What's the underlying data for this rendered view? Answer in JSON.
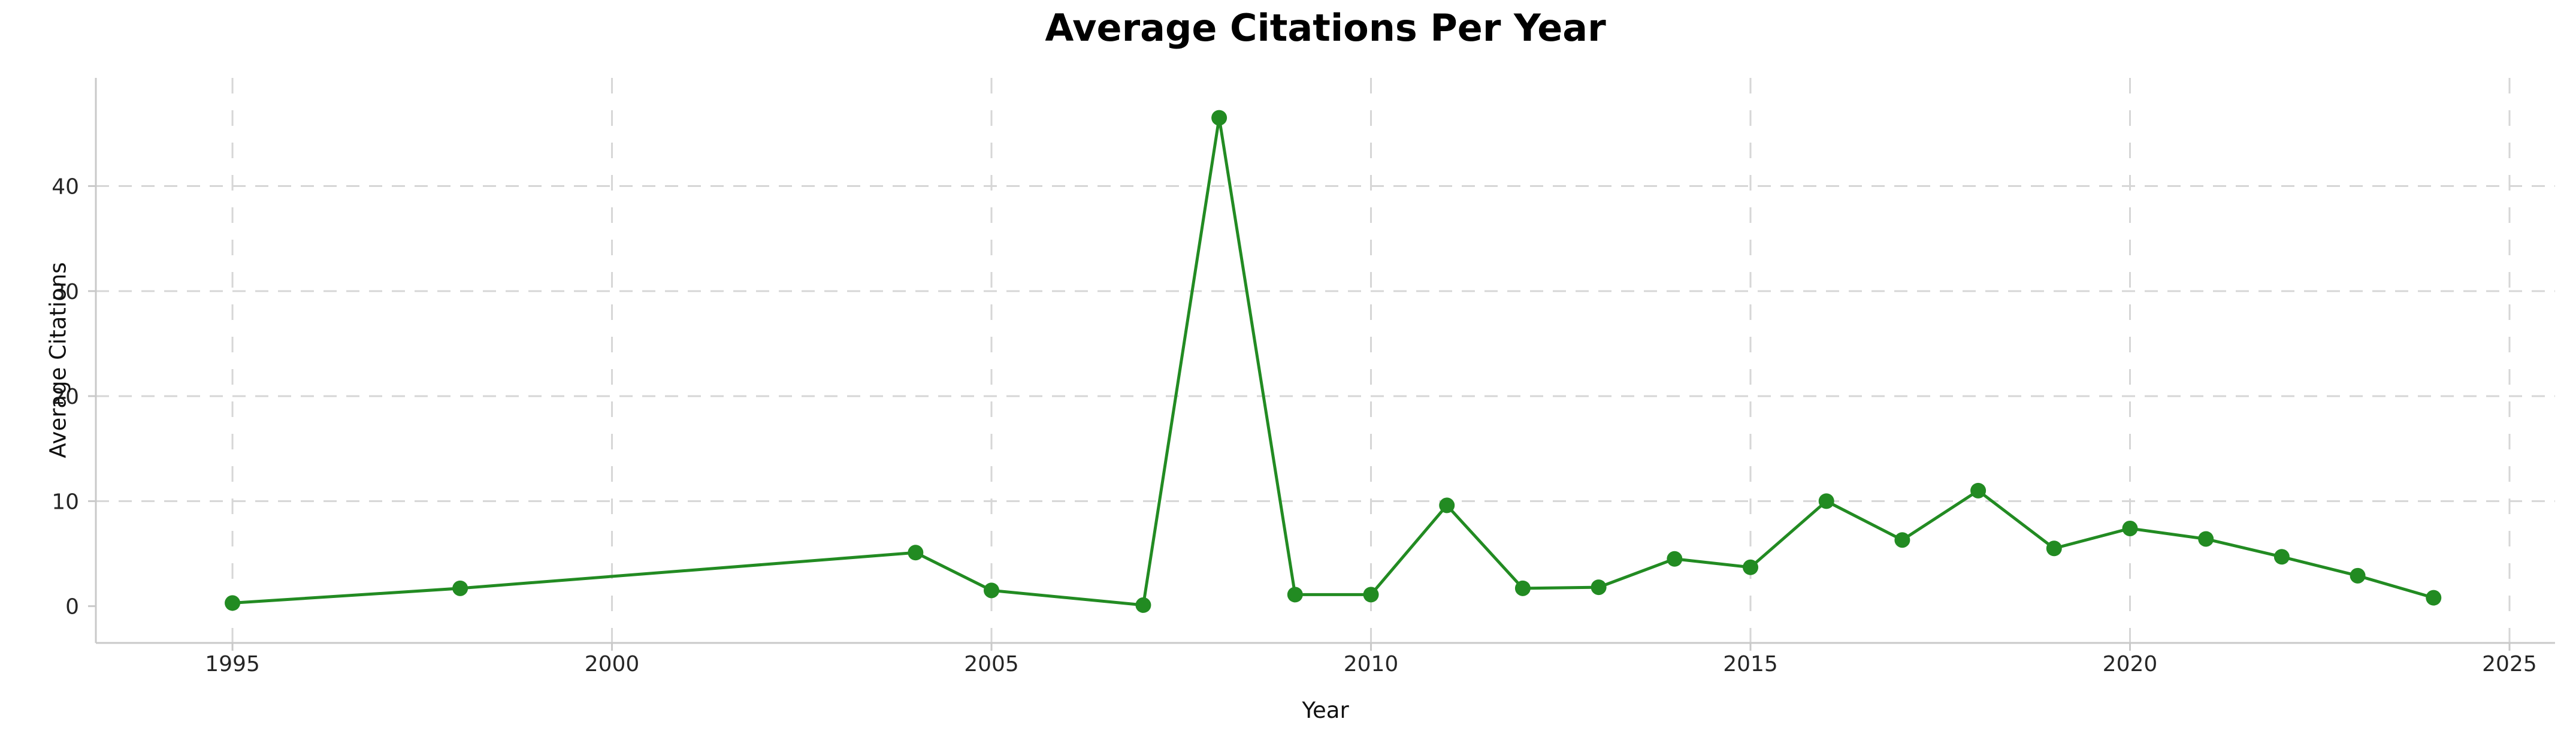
{
  "page": {
    "background": "#ffffff"
  },
  "chart_data": {
    "type": "line",
    "title": "Average Citations Per Year",
    "xlabel": "Year",
    "ylabel": "Average Citations",
    "series": [
      {
        "name": "Average Citations",
        "color": "#228B22",
        "marker": "circle",
        "x": [
          1995,
          1998,
          2004,
          2005,
          2007,
          2008,
          2009,
          2010,
          2011,
          2012,
          2013,
          2014,
          2015,
          2016,
          2017,
          2018,
          2019,
          2020,
          2021,
          2022,
          2023,
          2024
        ],
        "y": [
          0.3,
          1.7,
          5.1,
          1.5,
          0.1,
          46.5,
          1.1,
          1.1,
          9.6,
          1.7,
          1.8,
          4.5,
          3.7,
          10.0,
          6.3,
          11.0,
          5.5,
          7.4,
          6.4,
          4.7,
          2.9,
          0.8
        ]
      }
    ],
    "xticks": [
      1995,
      2000,
      2005,
      2010,
      2015,
      2020,
      2025
    ],
    "yticks": [
      0,
      10,
      20,
      30,
      40
    ],
    "xlim": [
      1993.2,
      2025.6
    ],
    "ylim": [
      -3.5,
      50.3
    ],
    "grid": {
      "visible": true,
      "style": "dashed",
      "color": "#d6d6d6",
      "horizontal_at": [
        10,
        20,
        30,
        40
      ],
      "vertical_at": [
        1995,
        2000,
        2005,
        2010,
        2015,
        2020,
        2025
      ]
    },
    "axis_color": "#c9c9c9",
    "tick_label_color": "#262626",
    "legend": "none"
  }
}
